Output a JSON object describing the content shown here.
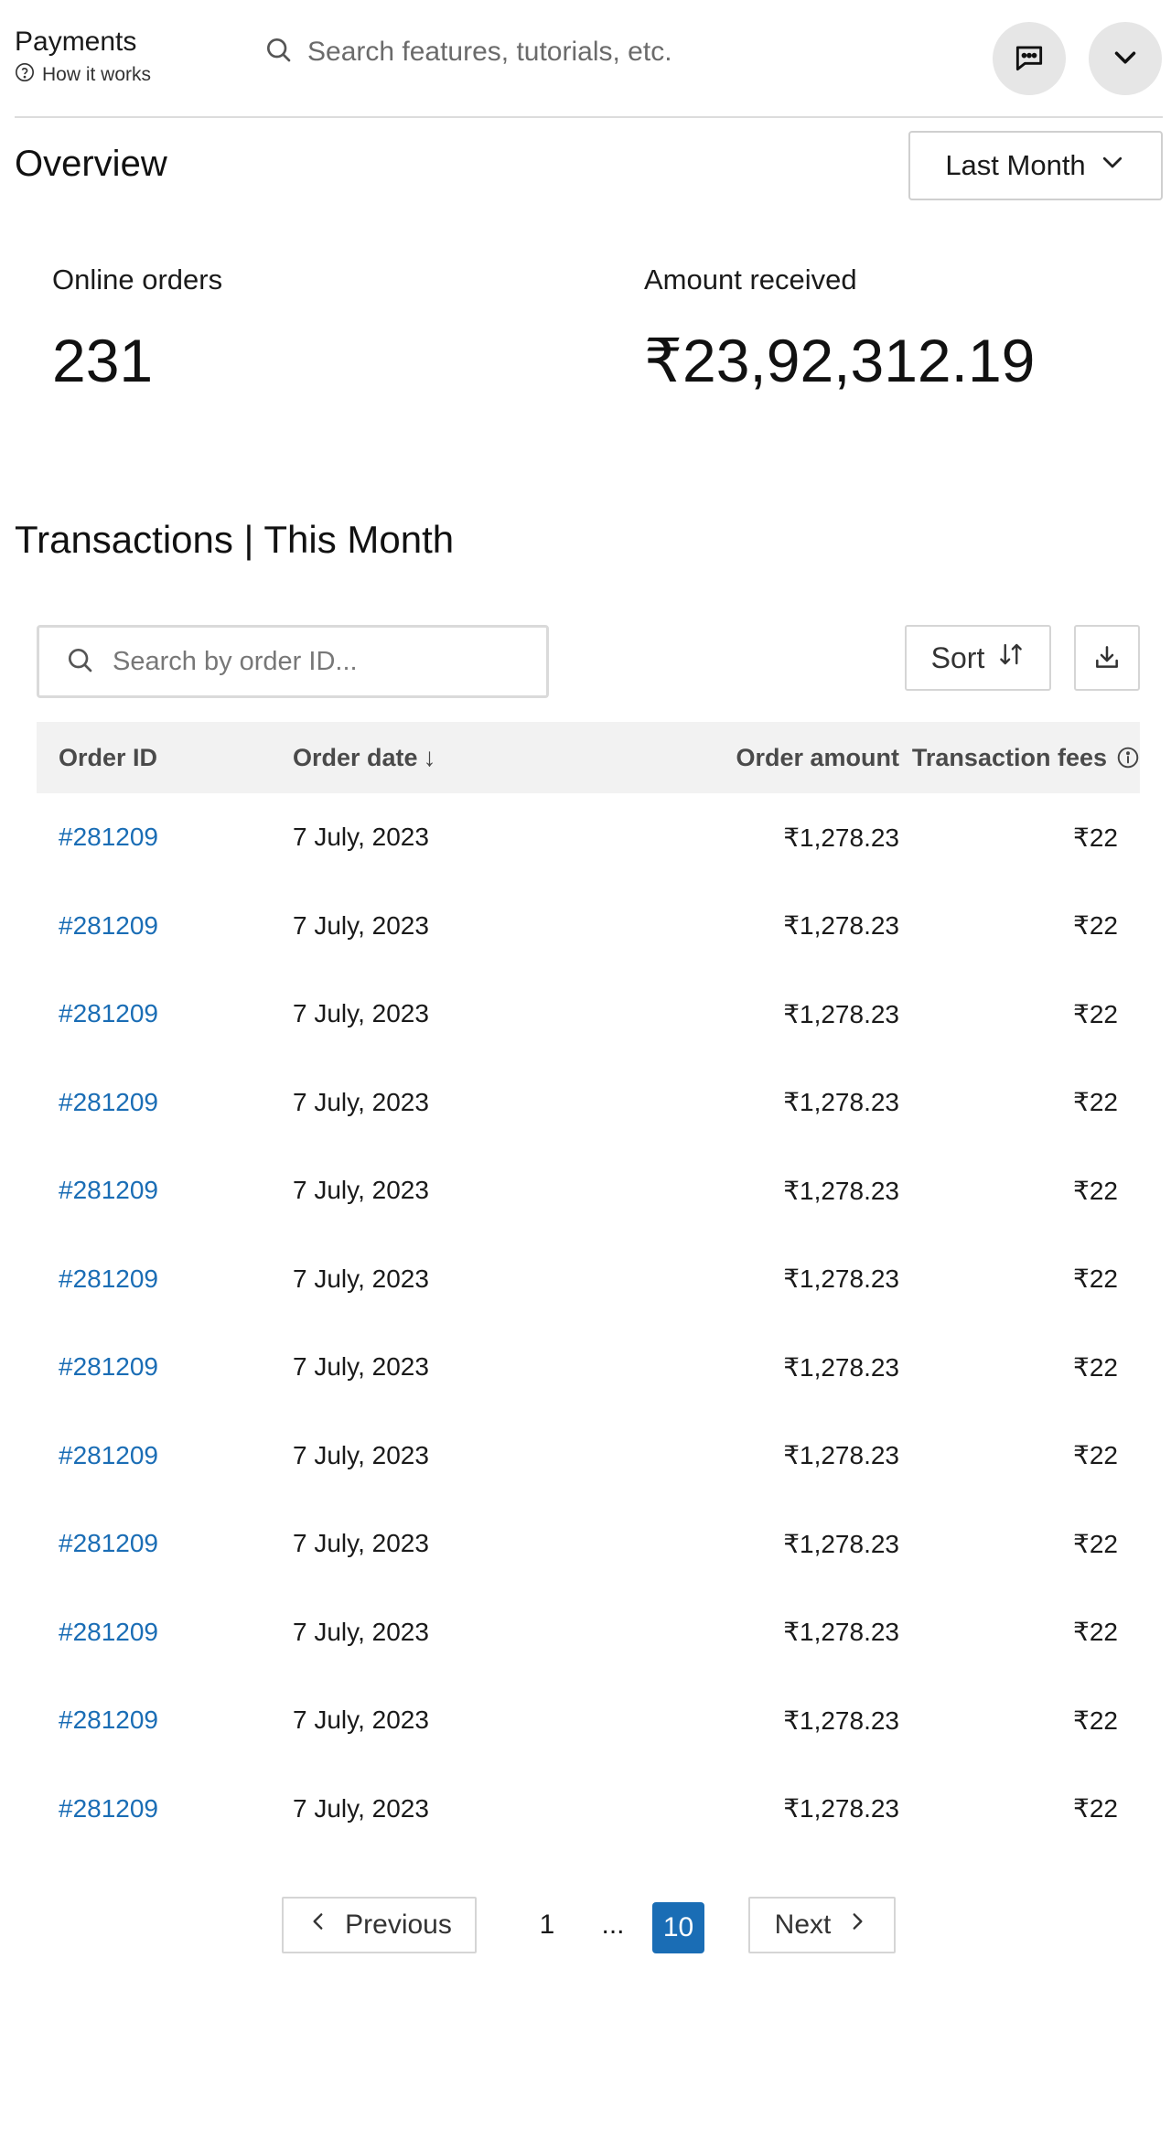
{
  "header": {
    "title": "Payments",
    "how_it_works": "How it works",
    "search_placeholder": "Search features, tutorials, etc."
  },
  "overview": {
    "title": "Overview",
    "period": "Last Month",
    "stats": [
      {
        "label": "Online orders",
        "value": "231"
      },
      {
        "label": "Amount received",
        "value": "₹23,92,312.19"
      }
    ]
  },
  "transactions": {
    "title": "Transactions | This Month",
    "search_placeholder": "Search by order ID...",
    "sort_label": "Sort",
    "columns": {
      "order_id": "Order ID",
      "order_date": "Order date",
      "order_date_sort": "↓",
      "order_amount": "Order amount",
      "transaction_fees": "Transaction fees"
    },
    "rows": [
      {
        "id": "#281209",
        "date": "7 July, 2023",
        "amount": "₹1,278.23",
        "fees": "₹22"
      },
      {
        "id": "#281209",
        "date": "7 July, 2023",
        "amount": "₹1,278.23",
        "fees": "₹22"
      },
      {
        "id": "#281209",
        "date": "7 July, 2023",
        "amount": "₹1,278.23",
        "fees": "₹22"
      },
      {
        "id": "#281209",
        "date": "7 July, 2023",
        "amount": "₹1,278.23",
        "fees": "₹22"
      },
      {
        "id": "#281209",
        "date": "7 July, 2023",
        "amount": "₹1,278.23",
        "fees": "₹22"
      },
      {
        "id": "#281209",
        "date": "7 July, 2023",
        "amount": "₹1,278.23",
        "fees": "₹22"
      },
      {
        "id": "#281209",
        "date": "7 July, 2023",
        "amount": "₹1,278.23",
        "fees": "₹22"
      },
      {
        "id": "#281209",
        "date": "7 July, 2023",
        "amount": "₹1,278.23",
        "fees": "₹22"
      },
      {
        "id": "#281209",
        "date": "7 July, 2023",
        "amount": "₹1,278.23",
        "fees": "₹22"
      },
      {
        "id": "#281209",
        "date": "7 July, 2023",
        "amount": "₹1,278.23",
        "fees": "₹22"
      },
      {
        "id": "#281209",
        "date": "7 July, 2023",
        "amount": "₹1,278.23",
        "fees": "₹22"
      },
      {
        "id": "#281209",
        "date": "7 July, 2023",
        "amount": "₹1,278.23",
        "fees": "₹22"
      }
    ]
  },
  "pagination": {
    "previous": "Previous",
    "next": "Next",
    "first_page": "1",
    "ellipsis": "...",
    "current_page": "10"
  },
  "colors": {
    "link": "#1a6db5",
    "current_page_bg": "#1a6db5",
    "header_row_bg": "#f2f2f2",
    "icon_button_bg": "#e6e6e6"
  }
}
